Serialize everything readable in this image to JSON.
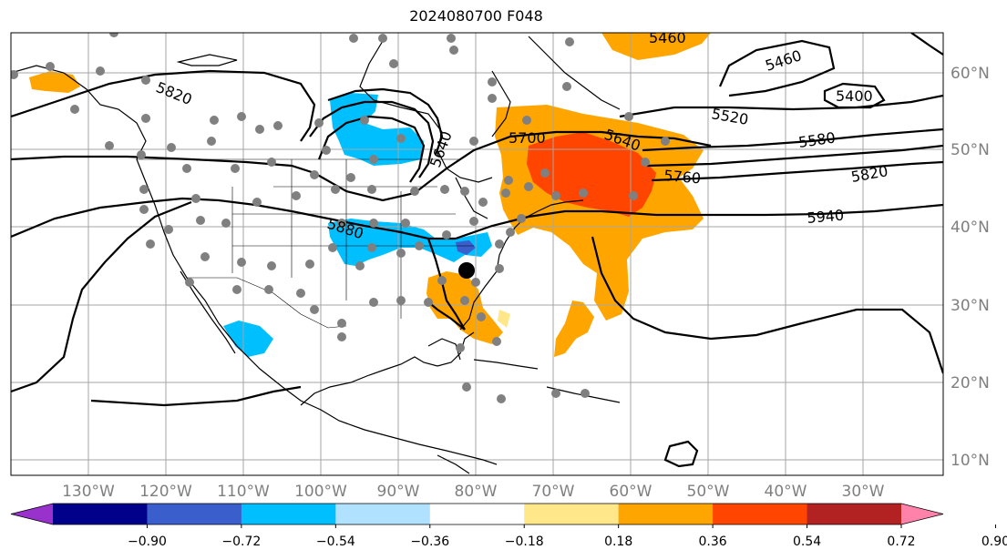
{
  "title": "2024080700 F048",
  "map": {
    "lat_labels": [
      "10°N",
      "20°N",
      "30°N",
      "40°N",
      "50°N",
      "60°N"
    ],
    "lon_labels": [
      "130°W",
      "120°W",
      "110°W",
      "100°W",
      "90°W",
      "80°W",
      "70°W",
      "60°W",
      "50°W",
      "40°W",
      "30°W"
    ],
    "contour_labels": [
      "5460",
      "5460",
      "5400",
      "5520",
      "5580",
      "5820",
      "5940",
      "5700",
      "5640",
      "5640",
      "5760",
      "5820",
      "5880"
    ],
    "grid": true,
    "colors": {
      "purple": "#9932cc",
      "navy": "#00008b",
      "royal_blue": "#3a5fcd",
      "deep_sky_blue": "#00bfff",
      "light_sky_blue": "#b0e2ff",
      "white": "#ffffff",
      "light_yellow": "#ffe78a",
      "orange": "#ffa500",
      "orange_red": "#ff4500",
      "firebrick": "#b22222",
      "pink": "#ff82ab"
    }
  },
  "colorbar": {
    "ticks": [
      "−0.90",
      "−0.72",
      "−0.54",
      "−0.36",
      "−0.18",
      "0.18",
      "0.36",
      "0.54",
      "0.72",
      "0.90"
    ],
    "colors": [
      "#9932cc",
      "#00008b",
      "#3a5fcd",
      "#00bfff",
      "#b0e2ff",
      "#ffffff",
      "#ffe78a",
      "#ffa500",
      "#ff4500",
      "#b22222",
      "#ff82ab"
    ]
  }
}
